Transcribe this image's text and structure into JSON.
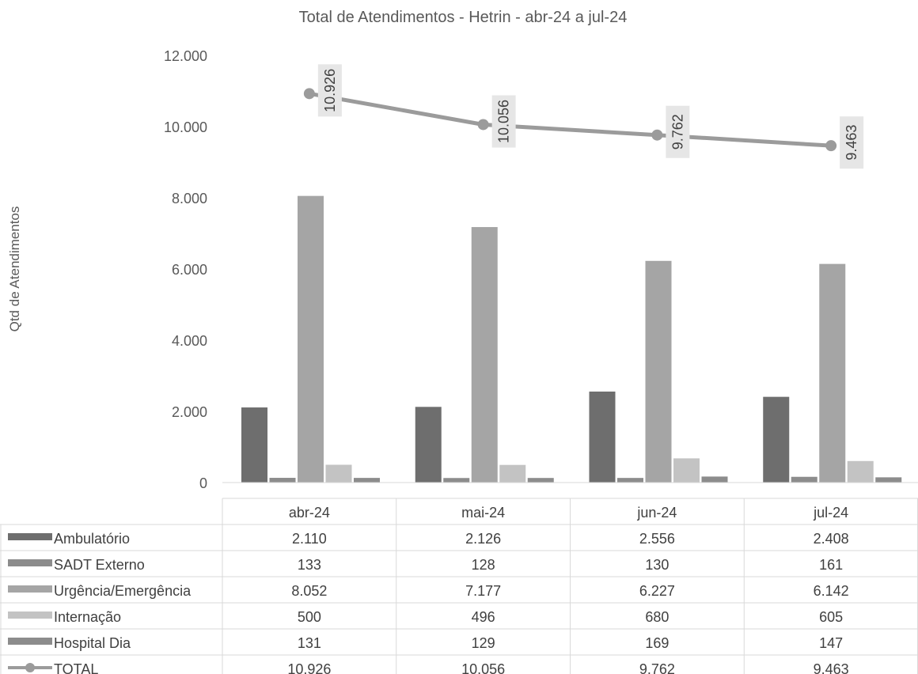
{
  "chart_data": {
    "type": "bar",
    "title": "Total de Atendimentos - Hetrin - abr-24 a jul-24",
    "ylabel": "Qtd de Atendimentos",
    "xlabel": "",
    "ylim": [
      0,
      12000
    ],
    "yticks": [
      0,
      2000,
      4000,
      6000,
      8000,
      10000,
      12000
    ],
    "ytick_labels": [
      "0",
      "2.000",
      "4.000",
      "6.000",
      "8.000",
      "10.000",
      "12.000"
    ],
    "categories": [
      "abr-24",
      "mai-24",
      "jun-24",
      "jul-24"
    ],
    "grid": false,
    "legend_placement": "data-table-left",
    "series": [
      {
        "name": "Ambulatório",
        "type": "bar",
        "color": "#6e6e6e",
        "values": [
          2110,
          2126,
          2556,
          2408
        ],
        "labels": [
          "2.110",
          "2.126",
          "2.556",
          "2.408"
        ]
      },
      {
        "name": "SADT Externo",
        "type": "bar",
        "color": "#8c8c8c",
        "values": [
          133,
          128,
          130,
          161
        ],
        "labels": [
          "133",
          "128",
          "130",
          "161"
        ]
      },
      {
        "name": "Urgência/Emergência",
        "type": "bar",
        "color": "#a5a5a5",
        "values": [
          8052,
          7177,
          6227,
          6142
        ],
        "labels": [
          "8.052",
          "7.177",
          "6.227",
          "6.142"
        ]
      },
      {
        "name": "Internação",
        "type": "bar",
        "color": "#c3c3c3",
        "values": [
          500,
          496,
          680,
          605
        ],
        "labels": [
          "500",
          "496",
          "680",
          "605"
        ]
      },
      {
        "name": "Hospital Dia",
        "type": "bar",
        "color": "#8c8c8c",
        "values": [
          131,
          129,
          169,
          147
        ],
        "labels": [
          "131",
          "129",
          "169",
          "147"
        ]
      },
      {
        "name": "TOTAL",
        "type": "line",
        "color": "#9b9b9b",
        "values": [
          10926,
          10056,
          9762,
          9463
        ],
        "labels": [
          "10.926",
          "10.056",
          "9.762",
          "9.463"
        ]
      }
    ]
  }
}
